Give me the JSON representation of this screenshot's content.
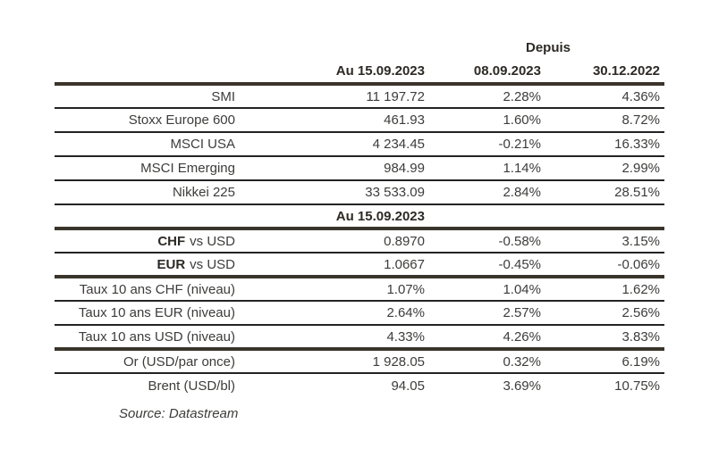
{
  "colors": {
    "rule-thick": "#3a352b",
    "rule-thin": "#232323",
    "text": "#3d3c3a",
    "heading": "#2d2a25",
    "bg": "#ffffff"
  },
  "chart_data": {
    "type": "table",
    "header": {
      "depuis": "Depuis",
      "col_current": "Au 15.09.2023",
      "col_since_1": "08.09.2023",
      "col_since_2": "30.12.2022"
    },
    "section_header": "Au 15.09.2023",
    "rows": [
      {
        "label": "SMI",
        "v1": "11 197.72",
        "v2": "2.28%",
        "v3": "4.36%"
      },
      {
        "label": "Stoxx Europe 600",
        "v1": "461.93",
        "v2": "1.60%",
        "v3": "8.72%"
      },
      {
        "label": "MSCI USA",
        "v1": "4 234.45",
        "v2": "-0.21%",
        "v3": "16.33%"
      },
      {
        "label": "MSCI Emerging",
        "v1": "984.99",
        "v2": "1.14%",
        "v3": "2.99%"
      },
      {
        "label": "Nikkei 225",
        "v1": "33 533.09",
        "v2": "2.84%",
        "v3": "28.51%"
      },
      {
        "label_bold": "CHF",
        "label_rest": "vs USD",
        "v1": "0.8970",
        "v2": "-0.58%",
        "v3": "3.15%"
      },
      {
        "label_bold": "EUR",
        "label_rest": "vs USD",
        "v1": "1.0667",
        "v2": "-0.45%",
        "v3": "-0.06%"
      },
      {
        "label": "Taux 10 ans CHF (niveau)",
        "v1": "1.07%",
        "v2": "1.04%",
        "v3": "1.62%"
      },
      {
        "label": "Taux 10 ans EUR (niveau)",
        "v1": "2.64%",
        "v2": "2.57%",
        "v3": "2.56%"
      },
      {
        "label": "Taux 10 ans USD (niveau)",
        "v1": "4.33%",
        "v2": "4.26%",
        "v3": "3.83%"
      },
      {
        "label": "Or (USD/par once)",
        "v1": "1 928.05",
        "v2": "0.32%",
        "v3": "6.19%"
      },
      {
        "label": "Brent (USD/bl)",
        "v1": "94.05",
        "v2": "3.69%",
        "v3": "10.75%"
      }
    ],
    "source": "Source: Datastream"
  }
}
